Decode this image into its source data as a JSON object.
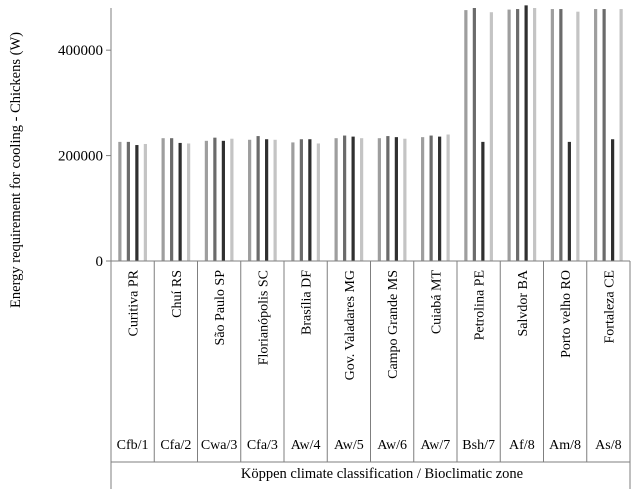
{
  "chart_data": {
    "type": "bar",
    "title": "",
    "ylabel": "Energy requirement for cooling - Chickens (W)",
    "xlabel": "Köppen climate classification / Bioclimatic zone",
    "ylim": [
      0,
      480000
    ],
    "yticks": [
      0,
      200000,
      400000
    ],
    "ytick_labels": [
      "0",
      "200000",
      "400000"
    ],
    "grid": false,
    "legend": "none",
    "categories": [
      "Curitiva PR",
      "Chuí RS",
      "São Paulo SP",
      "Florianópolis SC",
      "Brasília DF",
      "Gov. Valadares MG",
      "Campo Grande MS",
      "Cuiabá MT",
      "Petrolina PE",
      "Salvdor BA",
      "Porto velho RO",
      "Fortaleza CE"
    ],
    "zones": [
      "Cfb/1",
      "Cfa/2",
      "Cwa/3",
      "Cfa/3",
      "Aw/4",
      "Aw/5",
      "Aw/6",
      "Aw/7",
      "Bsh/7",
      "Af/8",
      "Am/8",
      "As/8"
    ],
    "series_colors": [
      "#9e9e9e",
      "#6b6b6b",
      "#2f2f2f",
      "#c4c4c4"
    ],
    "series": [
      {
        "values": [
          226000,
          233000,
          228000,
          230000,
          225000,
          233000,
          233000,
          235000,
          476000,
          477000,
          478000,
          478000
        ]
      },
      {
        "values": [
          226000,
          233000,
          234000,
          237000,
          231000,
          238000,
          237000,
          238000,
          480000,
          478000,
          478000,
          478000
        ]
      },
      {
        "values": [
          220000,
          224000,
          228000,
          231000,
          231000,
          236000,
          235000,
          236000,
          226000,
          485000,
          226000,
          231000
        ]
      },
      {
        "values": [
          222000,
          223000,
          232000,
          230000,
          223000,
          233000,
          232000,
          240000,
          472000,
          480000,
          473000,
          478000
        ]
      }
    ]
  }
}
